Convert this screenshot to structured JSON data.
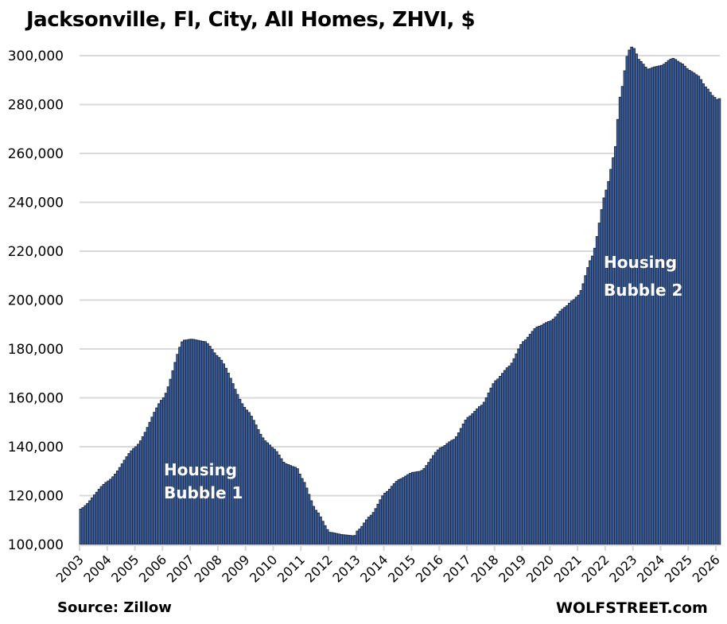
{
  "chart_data": {
    "type": "bar",
    "title": "Jacksonville, Fl, City, All Homes, ZHVI, $",
    "xlabel": "",
    "ylabel": "",
    "ylim": [
      100000,
      300000
    ],
    "yticks": [
      "100,000",
      "120,000",
      "140,000",
      "160,000",
      "180,000",
      "200,000",
      "220,000",
      "240,000",
      "260,000",
      "280,000",
      "300,000"
    ],
    "ytick_values": [
      100000,
      120000,
      140000,
      160000,
      180000,
      200000,
      220000,
      240000,
      260000,
      280000,
      300000
    ],
    "xticks": [
      "2003",
      "2004",
      "2005",
      "2006",
      "2007",
      "2008",
      "2009",
      "2010",
      "2011",
      "2012",
      "2013",
      "2014",
      "2015",
      "2016",
      "2017",
      "2018",
      "2019",
      "2020",
      "2021",
      "2022",
      "2023",
      "2024",
      "2025",
      "2026"
    ],
    "frequency": "monthly",
    "start": "2003-01",
    "end": "2026-02",
    "anchors_year": [
      2003.0,
      2004.0,
      2005.0,
      2006.0,
      2006.7,
      2007.0,
      2007.5,
      2008.0,
      2009.0,
      2009.7,
      2010.0,
      2010.4,
      2010.8,
      2011.0,
      2011.5,
      2012.0,
      2012.5,
      2012.9,
      2013.0,
      2013.5,
      2014.0,
      2014.5,
      2015.0,
      2015.3,
      2016.0,
      2016.5,
      2017.0,
      2017.5,
      2018.0,
      2018.5,
      2019.0,
      2019.5,
      2020.0,
      2020.5,
      2020.8,
      2021.0,
      2021.5,
      2022.0,
      2022.3,
      2022.5,
      2022.8,
      2022.95,
      2023.2,
      2023.5,
      2023.8,
      2024.0,
      2024.4,
      2024.7,
      2025.0,
      2025.3,
      2025.6,
      2025.9,
      2026.0,
      2026.1
    ],
    "anchors_value": [
      114500,
      126000,
      140000,
      160000,
      183500,
      184000,
      183000,
      176500,
      155000,
      142000,
      139000,
      133000,
      131500,
      127000,
      114000,
      105000,
      104000,
      103500,
      105500,
      112000,
      121000,
      126500,
      129500,
      130000,
      139500,
      143000,
      152000,
      157000,
      167000,
      173000,
      183000,
      189000,
      191500,
      197000,
      200000,
      202000,
      218000,
      245000,
      260000,
      283000,
      302000,
      303800,
      298000,
      294500,
      295500,
      296000,
      299000,
      297000,
      294000,
      292000,
      287000,
      283000,
      282000,
      282500
    ],
    "grid": true,
    "legend": "none",
    "bar_color": "#3d5f9e",
    "bar_edge_color": "#1f2a3c",
    "annotations": [
      {
        "text_line1": "Housing",
        "text_line2": "Bubble 1"
      },
      {
        "text_line1": "Housing",
        "text_line2": "Bubble 2"
      }
    ]
  },
  "footer": {
    "source": "Source: Zillow",
    "brand": "WOLFSTREET.com"
  }
}
